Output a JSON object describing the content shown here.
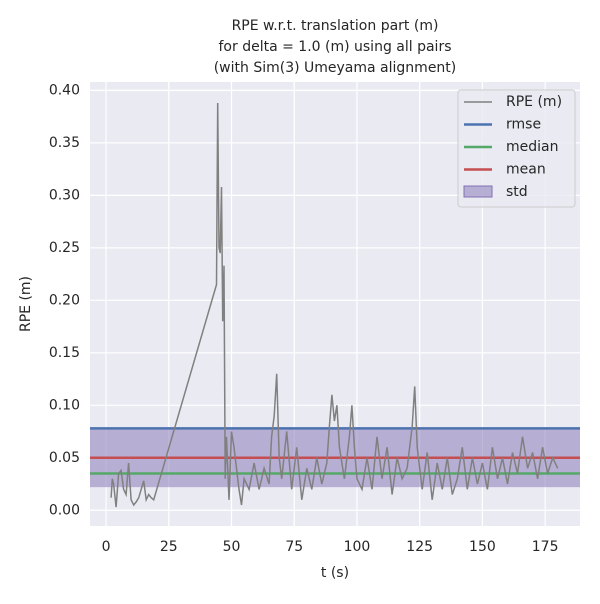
{
  "chart_data": {
    "type": "line",
    "title": [
      "RPE w.r.t. translation part (m)",
      "for delta = 1.0 (m) using all pairs",
      "(with Sim(3) Umeyama alignment)"
    ],
    "xlabel": "t (s)",
    "ylabel": "RPE (m)",
    "x": [
      2,
      2.5,
      3,
      4,
      5,
      6,
      7,
      8,
      9,
      10,
      11,
      12,
      13,
      14,
      15,
      16,
      17,
      18,
      19,
      44,
      44.5,
      45,
      45.5,
      46,
      46.5,
      47,
      47.5,
      48,
      49,
      50,
      51,
      52,
      53,
      54,
      55,
      57,
      59,
      61,
      63,
      65,
      66,
      67,
      68,
      69,
      70,
      72,
      74,
      76,
      78,
      80,
      82,
      84,
      86,
      88,
      89,
      90,
      91,
      92,
      93,
      95,
      97,
      98,
      99,
      100,
      102,
      104,
      106,
      108,
      110,
      112,
      114,
      116,
      118,
      120,
      122,
      123,
      124,
      126,
      128,
      130,
      132,
      134,
      136,
      138,
      140,
      142,
      144,
      146,
      148,
      150,
      152,
      154,
      156,
      158,
      160,
      162,
      164,
      166,
      168,
      170,
      172,
      174,
      176,
      178,
      180
    ],
    "series": [
      {
        "name": "RPE (m)",
        "color": "#808080",
        "values": [
          0.012,
          0.03,
          0.025,
          0.003,
          0.035,
          0.038,
          0.02,
          0.015,
          0.045,
          0.01,
          0.005,
          0.008,
          0.012,
          0.02,
          0.028,
          0.01,
          0.015,
          0.012,
          0.01,
          0.215,
          0.388,
          0.25,
          0.245,
          0.308,
          0.18,
          0.233,
          0.03,
          0.07,
          0.01,
          0.075,
          0.06,
          0.04,
          0.02,
          0.005,
          0.03,
          0.02,
          0.045,
          0.02,
          0.04,
          0.025,
          0.07,
          0.09,
          0.13,
          0.05,
          0.03,
          0.075,
          0.02,
          0.06,
          0.01,
          0.04,
          0.02,
          0.05,
          0.025,
          0.045,
          0.08,
          0.11,
          0.085,
          0.1,
          0.06,
          0.03,
          0.07,
          0.1,
          0.06,
          0.03,
          0.02,
          0.05,
          0.02,
          0.07,
          0.03,
          0.06,
          0.015,
          0.05,
          0.03,
          0.04,
          0.08,
          0.118,
          0.06,
          0.02,
          0.055,
          0.01,
          0.045,
          0.02,
          0.05,
          0.015,
          0.03,
          0.06,
          0.02,
          0.05,
          0.025,
          0.045,
          0.02,
          0.06,
          0.03,
          0.05,
          0.025,
          0.055,
          0.035,
          0.07,
          0.04,
          0.055,
          0.03,
          0.06,
          0.035,
          0.05,
          0.04
        ]
      }
    ],
    "stats": [
      {
        "name": "rmse",
        "color": "#4c72b0",
        "value": 0.078
      },
      {
        "name": "median",
        "color": "#55a868",
        "value": 0.035
      },
      {
        "name": "mean",
        "color": "#c44e52",
        "value": 0.05
      },
      {
        "name": "std",
        "color": "#8172b3",
        "value": 0.028
      }
    ],
    "xlim": [
      -6.4,
      188.9
    ],
    "ylim": [
      -0.015,
      0.408
    ],
    "xticks": [
      0,
      25,
      50,
      75,
      100,
      125,
      150,
      175
    ],
    "yticks": [
      {
        "value": 0,
        "label": "0.00"
      },
      {
        "value": 0.05,
        "label": "0.05"
      },
      {
        "value": 0.1,
        "label": "0.10"
      },
      {
        "value": 0.15,
        "label": "0.15"
      },
      {
        "value": 0.2,
        "label": "0.20"
      },
      {
        "value": 0.25,
        "label": "0.25"
      },
      {
        "value": 0.3,
        "label": "0.30"
      },
      {
        "value": 0.35,
        "label": "0.35"
      },
      {
        "value": 0.4,
        "label": "0.40"
      }
    ],
    "grid": true,
    "legend": "upper right"
  }
}
